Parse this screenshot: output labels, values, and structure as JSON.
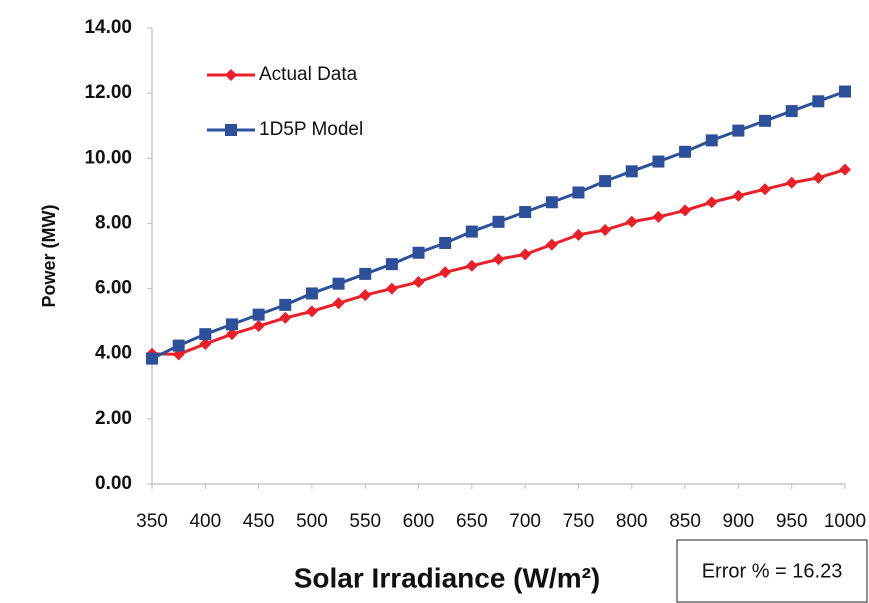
{
  "chart_data": {
    "type": "line",
    "x_label": "Solar Irradiance (W/m²)",
    "y_label": "Power (MW)",
    "annotation": "Error % = 16.23",
    "x": [
      350,
      375,
      400,
      425,
      450,
      475,
      500,
      525,
      550,
      575,
      600,
      625,
      650,
      675,
      700,
      725,
      750,
      775,
      800,
      825,
      850,
      875,
      900,
      925,
      950,
      975,
      1000
    ],
    "series": [
      {
        "name": "Actual Data",
        "color": "#e8202a",
        "marker": "diamond",
        "values": [
          4.0,
          3.98,
          4.3,
          4.6,
          4.85,
          5.1,
          5.3,
          5.55,
          5.8,
          6.0,
          6.2,
          6.5,
          6.7,
          6.9,
          7.05,
          7.35,
          7.65,
          7.8,
          8.05,
          8.2,
          8.4,
          8.65,
          8.85,
          9.05,
          9.25,
          9.4,
          9.65
        ]
      },
      {
        "name": "1D5P Model",
        "color": "#2e4f9a",
        "marker": "square",
        "values": [
          3.85,
          4.25,
          4.6,
          4.9,
          5.2,
          5.5,
          5.85,
          6.15,
          6.45,
          6.75,
          7.1,
          7.4,
          7.75,
          8.05,
          8.35,
          8.65,
          8.95,
          9.3,
          9.6,
          9.9,
          10.2,
          10.55,
          10.85,
          11.15,
          11.45,
          11.75,
          12.05
        ]
      }
    ],
    "xlim": [
      350,
      1000
    ],
    "xticks": [
      350,
      400,
      450,
      500,
      550,
      600,
      650,
      700,
      750,
      800,
      850,
      900,
      950,
      1000
    ],
    "ylim": [
      0,
      14
    ],
    "yticks": [
      {
        "value": 0,
        "label": "0.00"
      },
      {
        "value": 2,
        "label": "2.00"
      },
      {
        "value": 4,
        "label": "4.00"
      },
      {
        "value": 6,
        "label": "6.00"
      },
      {
        "value": 8,
        "label": "8.00"
      },
      {
        "value": 10,
        "label": "10.00"
      },
      {
        "value": 12,
        "label": "12.00"
      },
      {
        "value": 14,
        "label": "14.00"
      }
    ],
    "grid": false,
    "legend": "upper left"
  }
}
